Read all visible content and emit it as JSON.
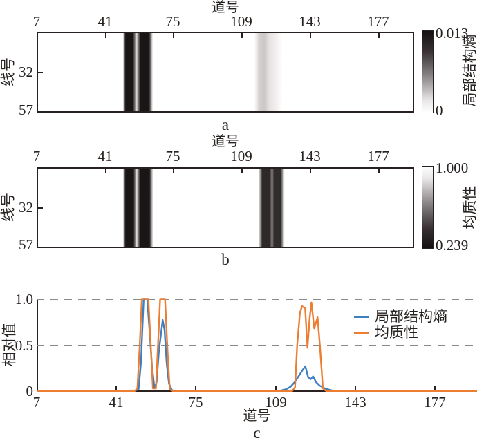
{
  "colors": {
    "axis": "#262020",
    "grid_dash": "#8A8A8A",
    "series_entropy_blue": "#3E7FC1",
    "series_homogeneity_orange": "#ED7D31",
    "text": "#262220"
  },
  "panel_a": {
    "title": "道号",
    "ylabel": "线号",
    "caption": "a",
    "x_ticks": [
      "7",
      "41",
      "75",
      "109",
      "143",
      "177"
    ],
    "y_ticks": [
      "32",
      "57"
    ],
    "colorbar": {
      "max_label": "0.013",
      "min_label": "0",
      "label": "局部结构熵"
    }
  },
  "panel_b": {
    "title": "道号",
    "ylabel": "线号",
    "caption": "b",
    "x_ticks": [
      "7",
      "41",
      "75",
      "109",
      "143",
      "177"
    ],
    "y_ticks": [
      "32",
      "57"
    ],
    "colorbar": {
      "max_label": "1.000",
      "min_label": "0.239",
      "label": "均质性"
    }
  },
  "panel_c": {
    "xlabel": "道号",
    "ylabel": "相对值",
    "caption": "c",
    "x_ticks": [
      "7",
      "41",
      "75",
      "109",
      "143",
      "177"
    ],
    "y_ticks": [
      "1.0",
      "0.5",
      "0"
    ],
    "legend": [
      {
        "label": "局部结构熵"
      },
      {
        "label": "均质性"
      }
    ]
  },
  "chart_data": [
    {
      "target": "heatmap-a",
      "type": "heatmap",
      "xlabel": "道号",
      "ylabel": "线号",
      "x_range": [
        7,
        195
      ],
      "y_range": [
        7,
        57
      ],
      "x_ticks": [
        7,
        41,
        75,
        109,
        143,
        177
      ],
      "y_ticks": [
        32,
        57
      ],
      "colorbar_label": "局部结构熵",
      "colorbar_range": [
        0,
        0.013
      ],
      "intensity_profile": [
        [
          7,
          0
        ],
        [
          49.6,
          0
        ],
        [
          50.9,
          1
        ],
        [
          54.7,
          1
        ],
        [
          56.4,
          0.15
        ],
        [
          58.3,
          1
        ],
        [
          62.7,
          1
        ],
        [
          64.6,
          0
        ],
        [
          115.5,
          0
        ],
        [
          118,
          0.2
        ],
        [
          120.5,
          0.24
        ],
        [
          123,
          0.13
        ],
        [
          126.5,
          0.07
        ],
        [
          129.5,
          0
        ],
        [
          195,
          0
        ]
      ]
    },
    {
      "target": "heatmap-b",
      "type": "heatmap",
      "xlabel": "道号",
      "ylabel": "线号",
      "x_range": [
        7,
        195
      ],
      "y_range": [
        7,
        57
      ],
      "x_ticks": [
        7,
        41,
        75,
        109,
        143,
        177
      ],
      "y_ticks": [
        32,
        57
      ],
      "colorbar_label": "均质性",
      "colorbar_range": [
        0.239,
        1.0
      ],
      "intensity_profile": [
        [
          7,
          0
        ],
        [
          49.6,
          0
        ],
        [
          50.9,
          1
        ],
        [
          54.9,
          1
        ],
        [
          56.5,
          0.12
        ],
        [
          58.2,
          1
        ],
        [
          62.9,
          1
        ],
        [
          64.8,
          0
        ],
        [
          117.6,
          0
        ],
        [
          119.5,
          0.92
        ],
        [
          123.3,
          0.92
        ],
        [
          124.4,
          0.5
        ],
        [
          125.4,
          0.9
        ],
        [
          128.7,
          0.9
        ],
        [
          130.7,
          0
        ],
        [
          195,
          0
        ]
      ]
    },
    {
      "target": "line-plot",
      "type": "line",
      "xlabel": "道号",
      "ylabel": "相对值",
      "x_range": [
        7,
        195
      ],
      "ylim": [
        0,
        1.0
      ],
      "x_ticks": [
        7,
        41,
        75,
        109,
        143,
        177
      ],
      "y_ticks": [
        0,
        0.5,
        1.0
      ],
      "gridlines_y": [
        0.5,
        1.0
      ],
      "legend_position": "upper right",
      "series": [
        {
          "name": "局部结构熵",
          "color": "#3E7FC1",
          "points": [
            [
              7,
              0
            ],
            [
              48.5,
              0
            ],
            [
              50.5,
              0.02
            ],
            [
              51.5,
              0.3
            ],
            [
              52.7,
              1.0
            ],
            [
              54.2,
              1.0
            ],
            [
              55.2,
              0.65
            ],
            [
              56.2,
              0.28
            ],
            [
              57.3,
              0.03
            ],
            [
              58.2,
              0.1
            ],
            [
              59.2,
              0.44
            ],
            [
              60.8,
              0.77
            ],
            [
              61.6,
              0.66
            ],
            [
              62.5,
              0.3
            ],
            [
              63.5,
              0.08
            ],
            [
              64.8,
              0.01
            ],
            [
              66.5,
              0
            ],
            [
              110,
              0
            ],
            [
              113.5,
              0.02
            ],
            [
              115.5,
              0.05
            ],
            [
              117.2,
              0.1
            ],
            [
              118.8,
              0.16
            ],
            [
              120.3,
              0.22
            ],
            [
              121.7,
              0.27
            ],
            [
              122.9,
              0.15
            ],
            [
              124,
              0.13
            ],
            [
              125,
              0.16
            ],
            [
              126.2,
              0.1
            ],
            [
              127.8,
              0.06
            ],
            [
              130,
              0.03
            ],
            [
              132.5,
              0.01
            ],
            [
              135,
              0
            ],
            [
              195,
              0
            ]
          ]
        },
        {
          "name": "均质性",
          "color": "#ED7D31",
          "points": [
            [
              7,
              0
            ],
            [
              48.8,
              0
            ],
            [
              50,
              0.03
            ],
            [
              51,
              0.5
            ],
            [
              51.9,
              1.0
            ],
            [
              54.7,
              1.0
            ],
            [
              55.7,
              0.5
            ],
            [
              56.6,
              0.03
            ],
            [
              57.9,
              0.03
            ],
            [
              58.8,
              0.5
            ],
            [
              59.7,
              1.0
            ],
            [
              61.8,
              1.0
            ],
            [
              62.9,
              0.42
            ],
            [
              63.8,
              0.02
            ],
            [
              65.2,
              0
            ],
            [
              116,
              0
            ],
            [
              117.3,
              0.04
            ],
            [
              118.2,
              0.5
            ],
            [
              119.4,
              0.85
            ],
            [
              120.3,
              0.92
            ],
            [
              121.6,
              0.9
            ],
            [
              122.6,
              0.47
            ],
            [
              123.5,
              0.78
            ],
            [
              124.3,
              0.96
            ],
            [
              125.5,
              0.68
            ],
            [
              126.9,
              0.8
            ],
            [
              127.9,
              0.5
            ],
            [
              129.2,
              0.03
            ],
            [
              130.6,
              0
            ],
            [
              195,
              0
            ]
          ]
        }
      ]
    }
  ]
}
